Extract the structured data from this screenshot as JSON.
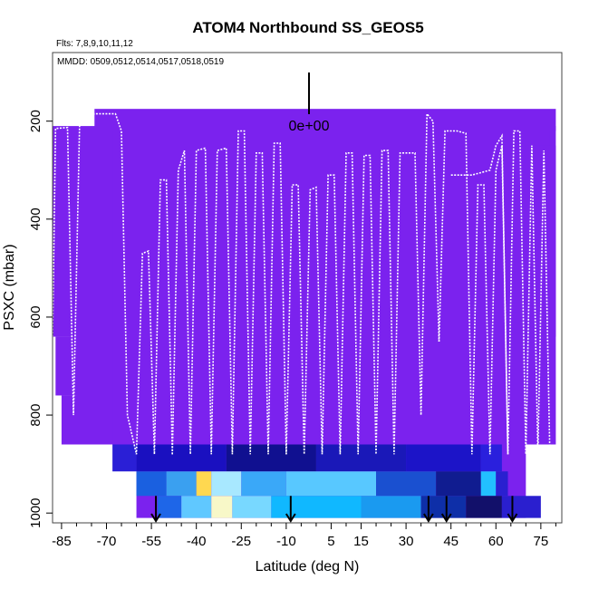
{
  "chart_data": {
    "type": "heatmap",
    "title": "ATOM4 Northbound SS_GEOS5",
    "flights_note": "Flts: 7,8,9,10,11,12",
    "dates_note": "MMDD: 0509,0512,0514,0517,0518,0519",
    "xlabel": "Latitude (deg N)",
    "ylabel": "PSXC (mbar)",
    "xlim": [
      -88,
      82
    ],
    "ylim": [
      1020,
      60
    ],
    "x_ticks": [
      -85,
      -70,
      -55,
      -40,
      -25,
      -10,
      5,
      15,
      30,
      45,
      60,
      75
    ],
    "x_tick_labels": [
      "-85",
      "-70",
      "-55",
      "-40",
      "-25",
      "-10",
      "5",
      "15",
      "30",
      "45",
      "60",
      "75"
    ],
    "x_minor_ticks": [
      -80,
      -75,
      -65,
      -60,
      -50,
      -45,
      -35,
      -30,
      -20,
      -15,
      -5,
      0,
      10,
      20,
      25,
      35,
      40,
      50,
      55,
      65,
      70,
      80
    ],
    "y_ticks": [
      200,
      400,
      600,
      800,
      1000
    ],
    "y_tick_labels": [
      "200",
      "400",
      "600",
      "800",
      "1000"
    ],
    "colorbar": {
      "label": "0e+00",
      "note": "legend marker at value 0"
    },
    "background_color": "#7b22ee",
    "boundary_layer_bands": [
      {
        "p_top": 860,
        "p_bottom": 915,
        "segments": [
          {
            "lat0": -68,
            "lat1": -60,
            "color": "#2a1fd6"
          },
          {
            "lat0": -60,
            "lat1": -30,
            "color": "#1a10c0"
          },
          {
            "lat0": -30,
            "lat1": 0,
            "color": "#101090"
          },
          {
            "lat0": 0,
            "lat1": 30,
            "color": "#1a18b8"
          },
          {
            "lat0": 30,
            "lat1": 55,
            "color": "#1c14c8"
          },
          {
            "lat0": 55,
            "lat1": 62,
            "color": "#2a20dd"
          }
        ]
      },
      {
        "p_top": 915,
        "p_bottom": 965,
        "segments": [
          {
            "lat0": -60,
            "lat1": -50,
            "color": "#1a60e0"
          },
          {
            "lat0": -50,
            "lat1": -40,
            "color": "#3aa0f0"
          },
          {
            "lat0": -40,
            "lat1": -35,
            "color": "#ffd850"
          },
          {
            "lat0": -35,
            "lat1": -25,
            "color": "#a8e8ff"
          },
          {
            "lat0": -25,
            "lat1": -10,
            "color": "#3aa8f8"
          },
          {
            "lat0": -10,
            "lat1": 20,
            "color": "#58c8ff"
          },
          {
            "lat0": 20,
            "lat1": 40,
            "color": "#1a50d0"
          },
          {
            "lat0": 40,
            "lat1": 55,
            "color": "#101c90"
          },
          {
            "lat0": 55,
            "lat1": 60,
            "color": "#22c0ff"
          },
          {
            "lat0": 60,
            "lat1": 64,
            "color": "#2a20d0"
          }
        ]
      },
      {
        "p_top": 965,
        "p_bottom": 1010,
        "segments": [
          {
            "lat0": -53,
            "lat1": -45,
            "color": "#1e66e8"
          },
          {
            "lat0": -45,
            "lat1": -35,
            "color": "#60c8ff"
          },
          {
            "lat0": -35,
            "lat1": -28,
            "color": "#f8f8c8"
          },
          {
            "lat0": -28,
            "lat1": -15,
            "color": "#78d8ff"
          },
          {
            "lat0": -15,
            "lat1": 15,
            "color": "#10b8ff"
          },
          {
            "lat0": 15,
            "lat1": 35,
            "color": "#1a9af0"
          },
          {
            "lat0": 35,
            "lat1": 50,
            "color": "#0e2fa8"
          },
          {
            "lat0": 50,
            "lat1": 62,
            "color": "#12106a"
          },
          {
            "lat0": 62,
            "lat1": 75,
            "color": "#2a1fcf"
          }
        ]
      }
    ],
    "arrows_lat": [
      -53.5,
      -8.5,
      37.5,
      43.5,
      65.5
    ],
    "flight_tracks": [
      {
        "name": "track-west",
        "points": [
          [
            -88,
            640
          ],
          [
            -87,
            215
          ],
          [
            -83,
            213
          ],
          [
            -81,
            800
          ],
          [
            -79,
            210
          ],
          [
            -76,
            190
          ],
          [
            -74,
            185
          ],
          [
            -70,
            185
          ],
          [
            -67,
            185
          ],
          [
            -65,
            220
          ],
          [
            -63,
            800
          ],
          [
            -60,
            880
          ],
          [
            -58,
            470
          ],
          [
            -56,
            465
          ],
          [
            -54,
            880
          ],
          [
            -52,
            320
          ],
          [
            -50,
            320
          ],
          [
            -48,
            880
          ]
        ]
      },
      {
        "name": "track-mid-1",
        "points": [
          [
            -48,
            880
          ],
          [
            -46,
            300
          ],
          [
            -44,
            260
          ],
          [
            -42,
            880
          ],
          [
            -40,
            260
          ],
          [
            -37,
            255
          ],
          [
            -35,
            880
          ],
          [
            -33,
            260
          ],
          [
            -30,
            255
          ],
          [
            -28,
            880
          ],
          [
            -26,
            220
          ],
          [
            -24,
            220
          ],
          [
            -22,
            880
          ],
          [
            -20,
            265
          ],
          [
            -18,
            265
          ],
          [
            -16,
            880
          ],
          [
            -14,
            245
          ],
          [
            -12,
            245
          ],
          [
            -10,
            880
          ]
        ]
      },
      {
        "name": "track-mid-2",
        "points": [
          [
            -10,
            880
          ],
          [
            -8,
            330
          ],
          [
            -6,
            330
          ],
          [
            -4,
            880
          ],
          [
            -2,
            340
          ],
          [
            0,
            335
          ],
          [
            2,
            880
          ],
          [
            4,
            310
          ],
          [
            6,
            310
          ],
          [
            8,
            880
          ],
          [
            10,
            265
          ],
          [
            12,
            265
          ],
          [
            14,
            880
          ],
          [
            16,
            270
          ],
          [
            18,
            270
          ],
          [
            20,
            880
          ],
          [
            22,
            260
          ],
          [
            24,
            260
          ],
          [
            26,
            880
          ],
          [
            28,
            265
          ],
          [
            33,
            265
          ],
          [
            35,
            800
          ],
          [
            37,
            185
          ],
          [
            39,
            200
          ],
          [
            41,
            650
          ]
        ]
      },
      {
        "name": "track-east",
        "points": [
          [
            41,
            650
          ],
          [
            43,
            220
          ],
          [
            47,
            220
          ],
          [
            50,
            225
          ],
          [
            52,
            880
          ],
          [
            54,
            330
          ],
          [
            56,
            330
          ],
          [
            58,
            880
          ],
          [
            60,
            300
          ],
          [
            62,
            250
          ],
          [
            64,
            880
          ],
          [
            66,
            220
          ],
          [
            68,
            220
          ],
          [
            70,
            880
          ],
          [
            72,
            250
          ],
          [
            74,
            880
          ],
          [
            76,
            260
          ],
          [
            78,
            880
          ]
        ]
      },
      {
        "name": "track-upper",
        "points": [
          [
            45,
            310
          ],
          [
            52,
            310
          ],
          [
            55,
            305
          ],
          [
            58,
            300
          ],
          [
            60,
            250
          ],
          [
            62,
            230
          ],
          [
            64,
            880
          ]
        ]
      }
    ]
  }
}
